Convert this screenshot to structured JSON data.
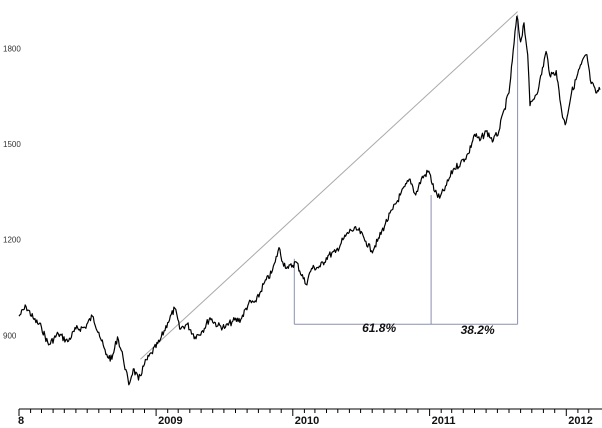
{
  "chart_data": {
    "type": "line",
    "title": "",
    "xlabel": "",
    "ylabel": "",
    "x_start_label": "8",
    "ylim": [
      760,
      1920
    ],
    "xlim": [
      "2008-01-01",
      "2012-03-31"
    ],
    "y_ticks": [
      {
        "value": 900,
        "label": "900"
      },
      {
        "value": 1200,
        "label": "1200"
      },
      {
        "value": 1500,
        "label": "1500"
      },
      {
        "value": 1800,
        "label": "1800"
      }
    ],
    "x_year_ticks": [
      {
        "date": "2009-01-01",
        "label": "2009"
      },
      {
        "date": "2010-01-01",
        "label": "2010"
      },
      {
        "date": "2011-01-01",
        "label": "2011"
      },
      {
        "date": "2012-01-01",
        "label": "2012"
      }
    ],
    "grid": false,
    "legend": "none",
    "series": [
      {
        "color": "#000000",
        "points": [
          [
            "2008-01-01",
            960
          ],
          [
            "2008-01-20",
            990
          ],
          [
            "2008-02-10",
            950
          ],
          [
            "2008-03-01",
            925
          ],
          [
            "2008-03-20",
            870
          ],
          [
            "2008-04-15",
            905
          ],
          [
            "2008-05-10",
            880
          ],
          [
            "2008-06-01",
            920
          ],
          [
            "2008-06-25",
            925
          ],
          [
            "2008-07-15",
            960
          ],
          [
            "2008-08-01",
            910
          ],
          [
            "2008-08-20",
            840
          ],
          [
            "2008-09-05",
            825
          ],
          [
            "2008-09-20",
            895
          ],
          [
            "2008-10-05",
            830
          ],
          [
            "2008-10-20",
            745
          ],
          [
            "2008-11-01",
            795
          ],
          [
            "2008-11-15",
            760
          ],
          [
            "2008-12-01",
            810
          ],
          [
            "2008-12-20",
            845
          ],
          [
            "2009-01-10",
            880
          ],
          [
            "2009-02-01",
            940
          ],
          [
            "2009-02-20",
            985
          ],
          [
            "2009-03-05",
            920
          ],
          [
            "2009-03-25",
            935
          ],
          [
            "2009-04-15",
            895
          ],
          [
            "2009-05-05",
            915
          ],
          [
            "2009-05-25",
            955
          ],
          [
            "2009-06-15",
            930
          ],
          [
            "2009-07-05",
            925
          ],
          [
            "2009-07-25",
            945
          ],
          [
            "2009-08-15",
            950
          ],
          [
            "2009-09-05",
            1000
          ],
          [
            "2009-09-25",
            1005
          ],
          [
            "2009-10-15",
            1060
          ],
          [
            "2009-11-05",
            1095
          ],
          [
            "2009-11-15",
            1130
          ],
          [
            "2009-11-25",
            1175
          ],
          [
            "2009-12-05",
            1130
          ],
          [
            "2009-12-20",
            1110
          ],
          [
            "2010-01-10",
            1130
          ],
          [
            "2010-02-05",
            1060
          ],
          [
            "2010-02-20",
            1110
          ],
          [
            "2010-03-15",
            1115
          ],
          [
            "2010-04-05",
            1150
          ],
          [
            "2010-04-25",
            1160
          ],
          [
            "2010-05-15",
            1200
          ],
          [
            "2010-06-05",
            1230
          ],
          [
            "2010-06-25",
            1230
          ],
          [
            "2010-07-15",
            1195
          ],
          [
            "2010-07-30",
            1165
          ],
          [
            "2010-08-15",
            1195
          ],
          [
            "2010-09-05",
            1250
          ],
          [
            "2010-09-25",
            1295
          ],
          [
            "2010-10-15",
            1340
          ],
          [
            "2010-11-10",
            1390
          ],
          [
            "2010-11-25",
            1340
          ],
          [
            "2010-12-10",
            1390
          ],
          [
            "2010-12-30",
            1415
          ],
          [
            "2011-01-15",
            1350
          ],
          [
            "2011-01-28",
            1330
          ],
          [
            "2011-02-15",
            1370
          ],
          [
            "2011-03-05",
            1420
          ],
          [
            "2011-03-25",
            1440
          ],
          [
            "2011-04-15",
            1470
          ],
          [
            "2011-05-01",
            1530
          ],
          [
            "2011-05-15",
            1510
          ],
          [
            "2011-06-01",
            1540
          ],
          [
            "2011-06-20",
            1510
          ],
          [
            "2011-07-05",
            1540
          ],
          [
            "2011-07-20",
            1610
          ],
          [
            "2011-08-01",
            1660
          ],
          [
            "2011-08-10",
            1760
          ],
          [
            "2011-08-22",
            1900
          ],
          [
            "2011-09-01",
            1820
          ],
          [
            "2011-09-10",
            1880
          ],
          [
            "2011-09-20",
            1780
          ],
          [
            "2011-09-26",
            1620
          ],
          [
            "2011-10-05",
            1640
          ],
          [
            "2011-10-20",
            1680
          ],
          [
            "2011-11-08",
            1790
          ],
          [
            "2011-11-20",
            1710
          ],
          [
            "2011-12-05",
            1730
          ],
          [
            "2011-12-20",
            1600
          ],
          [
            "2011-12-29",
            1560
          ],
          [
            "2012-01-15",
            1660
          ],
          [
            "2012-02-10",
            1750
          ],
          [
            "2012-02-25",
            1780
          ],
          [
            "2012-03-05",
            1700
          ],
          [
            "2012-03-20",
            1660
          ],
          [
            "2012-03-31",
            1670
          ]
        ]
      }
    ],
    "annotations": [
      {
        "kind": "trendline",
        "from": [
          "2008-11-20",
          825
        ],
        "to": [
          "2011-08-24",
          1915
        ],
        "color": "#aaaaaa"
      },
      {
        "kind": "retracement-line",
        "from": [
          "2011-08-24",
          1905
        ],
        "to": [
          "2011-08-24",
          935
        ],
        "color": "#8a8fb0"
      },
      {
        "kind": "retracement-line",
        "from": [
          "2011-01-05",
          1340
        ],
        "to": [
          "2011-01-05",
          935
        ],
        "color": "#8a8fb0"
      },
      {
        "kind": "retracement-line",
        "from": [
          "2010-01-05",
          1140
        ],
        "to": [
          "2010-01-05",
          935
        ],
        "color": "#8a8fb0"
      },
      {
        "kind": "retracement-line",
        "from": [
          "2010-01-05",
          935
        ],
        "to": [
          "2011-08-24",
          935
        ],
        "color": "#8a8fb0"
      }
    ],
    "labels": [
      {
        "text": "61.8%",
        "at": [
          "2010-07-05",
          910
        ]
      },
      {
        "text": "38.2%",
        "at": [
          "2011-03-25",
          905
        ]
      }
    ]
  }
}
